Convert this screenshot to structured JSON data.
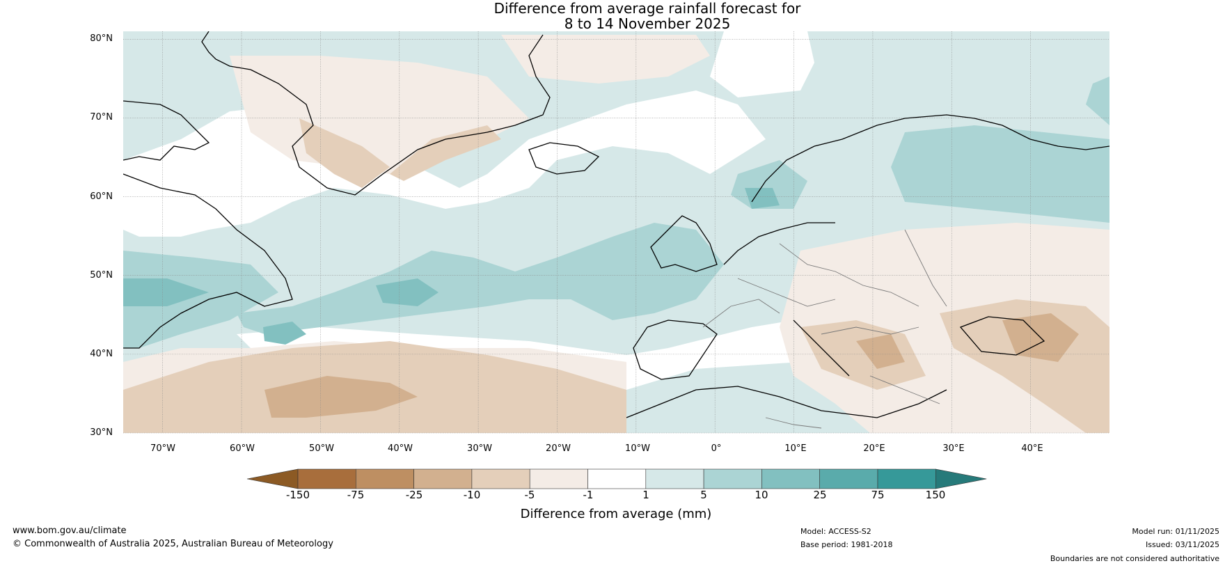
{
  "title": {
    "line1": "Difference from average rainfall forecast for",
    "line2": "8 to 14 November 2025"
  },
  "map": {
    "latitude_labels": [
      "80°N",
      "70°N",
      "60°N",
      "50°N",
      "40°N",
      "30°N"
    ],
    "longitude_labels": [
      "70°W",
      "60°W",
      "50°W",
      "40°W",
      "30°W",
      "20°W",
      "10°W",
      "0°",
      "10°E",
      "20°E",
      "30°E",
      "40°E"
    ],
    "extent": {
      "lon_min": -75,
      "lon_max": 50,
      "lat_min": 30,
      "lat_max": 81
    }
  },
  "colorbar": {
    "ticks": [
      "-150",
      "-75",
      "-25",
      "-10",
      "-5",
      "-1",
      "1",
      "5",
      "10",
      "25",
      "75",
      "150"
    ],
    "colors": [
      "#8c5a24",
      "#a86e3c",
      "#be8f62",
      "#d2b08f",
      "#e4cfba",
      "#f4ece6",
      "#ffffff",
      "#d6e8e8",
      "#abd4d4",
      "#82c0c0",
      "#5aabab",
      "#369999",
      "#267a7a"
    ],
    "label": "Difference from average (mm)"
  },
  "footer": {
    "website": "www.bom.gov.au/climate",
    "copyright": "© Commonwealth of Australia 2025, Australian Bureau of Meteorology",
    "model": "Model: ACCESS-S2",
    "base_period": "Base period: 1981-2018",
    "model_run": "Model run: 01/11/2025",
    "issued": "Issued: 03/11/2025",
    "disclaimer": "Boundaries are not considered authoritative"
  }
}
